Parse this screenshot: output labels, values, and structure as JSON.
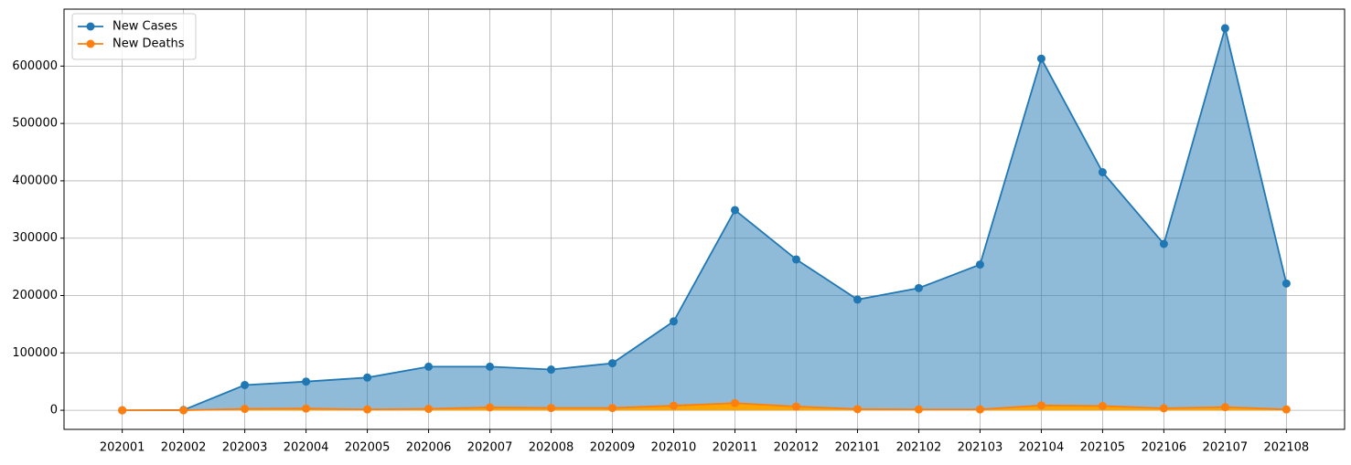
{
  "chart_data": {
    "type": "area",
    "categories": [
      "202001",
      "202002",
      "202003",
      "202004",
      "202005",
      "202006",
      "202007",
      "202008",
      "202009",
      "202010",
      "202011",
      "202012",
      "202101",
      "202102",
      "202103",
      "202104",
      "202105",
      "202106",
      "202107",
      "202108"
    ],
    "series": [
      {
        "name": "New Cases",
        "color": "#1f77b4",
        "fill": "#1f77b4",
        "fill_opacity": 0.5,
        "values": [
          0,
          500,
          44000,
          50000,
          57000,
          76000,
          76000,
          71000,
          82000,
          155000,
          349000,
          263000,
          193000,
          213000,
          254000,
          613000,
          415000,
          290000,
          666000,
          221000
        ]
      },
      {
        "name": "New Deaths",
        "color": "#ff7f0e",
        "fill": "#ffa500",
        "fill_opacity": 1,
        "values": [
          0,
          0,
          2500,
          3000,
          1500,
          2500,
          5000,
          4000,
          4000,
          8000,
          12500,
          6500,
          2000,
          1500,
          1500,
          8500,
          7500,
          3500,
          5500,
          1500
        ]
      }
    ],
    "ylim": [
      -33300,
      699300
    ],
    "yticks": [
      0,
      100000,
      200000,
      300000,
      400000,
      500000,
      600000
    ],
    "grid": true,
    "legend": "upper-left",
    "markers": true
  }
}
